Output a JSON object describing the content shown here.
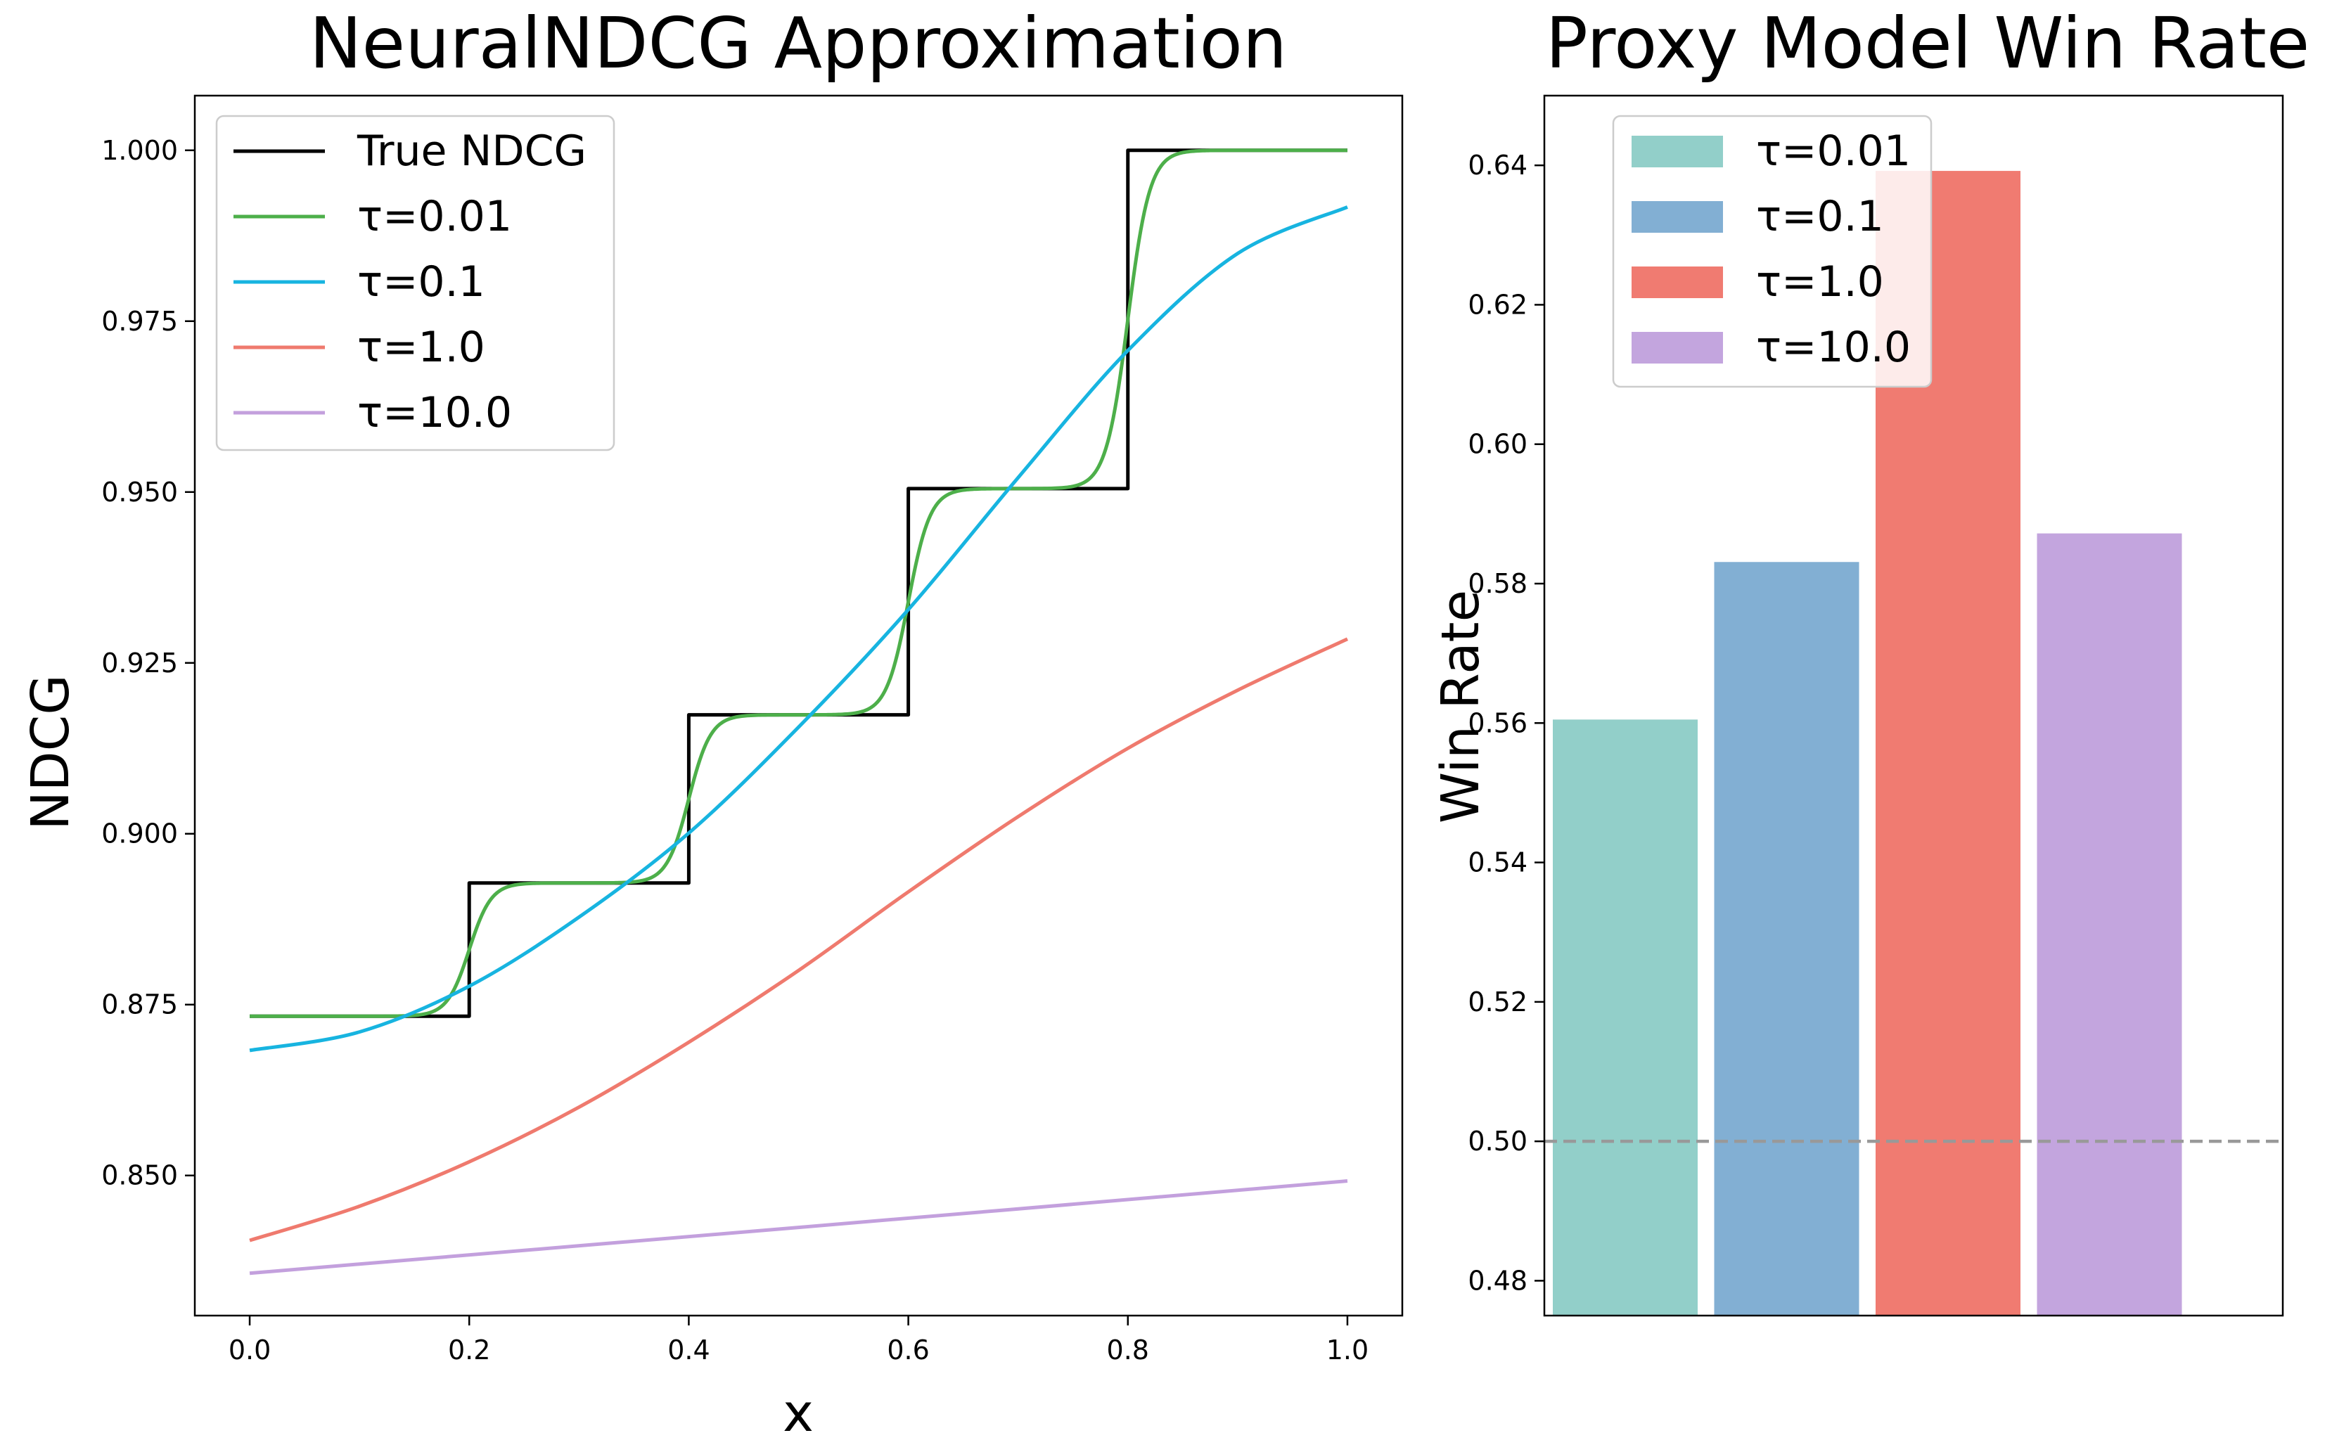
{
  "chart_data": [
    {
      "type": "line",
      "title": "NeuralNDCG Approximation",
      "xlabel": "x",
      "ylabel": "NDCG",
      "xlim": [
        -0.05,
        1.05
      ],
      "ylim": [
        0.8295,
        1.008
      ],
      "xticks": [
        0.0,
        0.2,
        0.4,
        0.6,
        0.8,
        1.0
      ],
      "xtick_labels": [
        "0.0",
        "0.2",
        "0.4",
        "0.6",
        "0.8",
        "1.0"
      ],
      "yticks": [
        0.85,
        0.875,
        0.9,
        0.925,
        0.95,
        0.975,
        1.0
      ],
      "ytick_labels": [
        "0.850",
        "0.875",
        "0.900",
        "0.925",
        "0.950",
        "0.975",
        "1.000"
      ],
      "legend_position": "top-left",
      "step_levels": [
        0.8733,
        0.8928,
        0.9174,
        0.9505,
        1.0
      ],
      "step_breaks": [
        0.2,
        0.4,
        0.6,
        0.8
      ],
      "series": [
        {
          "name": "True NDCG",
          "color": "#000000",
          "kind": "step"
        },
        {
          "name": "τ=0.01",
          "color": "#4daf4a",
          "kind": "smooth",
          "sigmoid_scale": 0.01
        },
        {
          "name": "τ=0.1",
          "color": "#17b4e0",
          "kind": "points",
          "x": [
            0.0,
            0.1,
            0.2,
            0.3,
            0.4,
            0.5,
            0.6,
            0.7,
            0.8,
            0.9,
            1.0
          ],
          "y": [
            0.8683,
            0.871,
            0.8777,
            0.8878,
            0.9001,
            0.9156,
            0.9328,
            0.9521,
            0.9707,
            0.9849,
            0.9917
          ]
        },
        {
          "name": "τ=1.0",
          "color": "#ef7a6e",
          "kind": "points",
          "x": [
            0.0,
            0.1,
            0.2,
            0.3,
            0.4,
            0.5,
            0.6,
            0.7,
            0.8,
            0.9,
            1.0
          ],
          "y": [
            0.8405,
            0.8455,
            0.852,
            0.86,
            0.8695,
            0.88,
            0.8915,
            0.9025,
            0.9125,
            0.921,
            0.9285
          ]
        },
        {
          "name": "τ=10.0",
          "color": "#c3a0dd",
          "kind": "points",
          "x": [
            0.0,
            0.5,
            1.0
          ],
          "y": [
            0.8357,
            0.8424,
            0.8492
          ]
        }
      ]
    },
    {
      "type": "bar",
      "title": "Proxy Model Win Rate",
      "xlabel": "",
      "ylabel": "Win Rate",
      "ylim": [
        0.475,
        0.65
      ],
      "yticks": [
        0.48,
        0.5,
        0.52,
        0.54,
        0.56,
        0.58,
        0.6,
        0.62,
        0.64
      ],
      "ytick_labels": [
        "0.48",
        "0.50",
        "0.52",
        "0.54",
        "0.56",
        "0.58",
        "0.60",
        "0.62",
        "0.64"
      ],
      "categories": [
        "τ=0.01",
        "τ=0.1",
        "τ=1.0",
        "τ=10.0"
      ],
      "values": [
        0.5605,
        0.5831,
        0.6392,
        0.5872
      ],
      "colors": [
        "#92cfc9",
        "#82afd3",
        "#f07b71",
        "#c3a5de"
      ],
      "baseline": 0.5,
      "baseline_color": "#999999",
      "legend_position": "top-left"
    }
  ]
}
